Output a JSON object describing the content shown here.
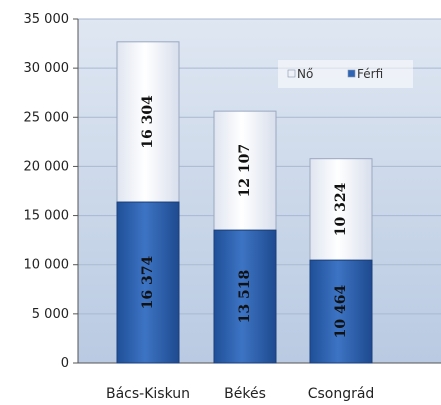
{
  "chart_data": {
    "type": "bar",
    "stacked": true,
    "categories": [
      "Bács-Kiskun",
      "Békés",
      "Csongrád"
    ],
    "series": [
      {
        "name": "Férfi",
        "values": [
          16374,
          13518,
          10464
        ],
        "color": "#2f64b4"
      },
      {
        "name": "Nő",
        "values": [
          16304,
          12107,
          10324
        ],
        "color": "#eef1f7"
      }
    ],
    "data_labels": {
      "Férfi": [
        "16 374",
        "13 518",
        "10 464"
      ],
      "Nő": [
        "16 304",
        "12 107",
        "10 324"
      ]
    },
    "title": "",
    "xlabel": "",
    "ylabel": "",
    "ylim": [
      0,
      35000
    ],
    "yticks": [
      0,
      5000,
      10000,
      15000,
      20000,
      25000,
      30000,
      35000
    ],
    "ytick_labels": [
      "0",
      "5 000",
      "10 000",
      "15 000",
      "20 000",
      "25 000",
      "30 000",
      "35 000"
    ],
    "grid": true,
    "legend": {
      "placement": "top-right",
      "order": [
        "Nő",
        "Férfi"
      ]
    },
    "plot_background": "#c5d3e6"
  }
}
